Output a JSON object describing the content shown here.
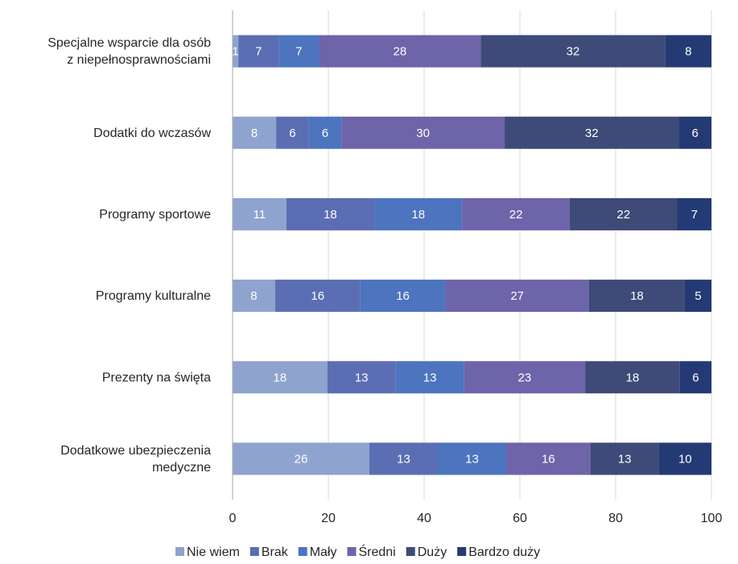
{
  "chart_data": {
    "type": "bar",
    "orientation": "horizontal",
    "stacked": true,
    "categories": [
      "Specjalne wsparcie dla osób z niepełnosprawnościami",
      "Dodatki do wczasów",
      "Programy sportowe",
      "Programy kulturalne",
      "Prezenty na święta",
      "Dodatkowe ubezpieczenia medyczne"
    ],
    "category_lines": [
      [
        "Specjalne wsparcie dla osób",
        "z niepełnosprawnościami"
      ],
      [
        "Dodatki do wczasów"
      ],
      [
        "Programy sportowe"
      ],
      [
        "Programy kulturalne"
      ],
      [
        "Prezenty na święta"
      ],
      [
        "Dodatkowe ubezpieczenia",
        "medyczne"
      ]
    ],
    "series": [
      {
        "name": "Nie wiem",
        "color": "#8fa3cf",
        "values": [
          1,
          8,
          11,
          8,
          18,
          26
        ]
      },
      {
        "name": "Brak",
        "color": "#5b6eb3",
        "values": [
          7,
          6,
          18,
          16,
          13,
          13
        ]
      },
      {
        "name": "Mały",
        "color": "#4d74bf",
        "values": [
          7,
          6,
          18,
          16,
          13,
          13
        ]
      },
      {
        "name": "Średni",
        "color": "#6e64a9",
        "values": [
          28,
          30,
          22,
          27,
          23,
          16
        ]
      },
      {
        "name": "Duży",
        "color": "#3e4a78",
        "values": [
          32,
          32,
          22,
          18,
          18,
          13
        ]
      },
      {
        "name": "Bardzo duży",
        "color": "#243a74",
        "values": [
          8,
          6,
          7,
          5,
          6,
          10
        ]
      }
    ],
    "xlim": [
      0,
      100
    ],
    "xticks": [
      0,
      20,
      40,
      60,
      80,
      100
    ],
    "xgrid": true,
    "legend_position": "bottom",
    "first_segment_label_color": "#262626"
  }
}
